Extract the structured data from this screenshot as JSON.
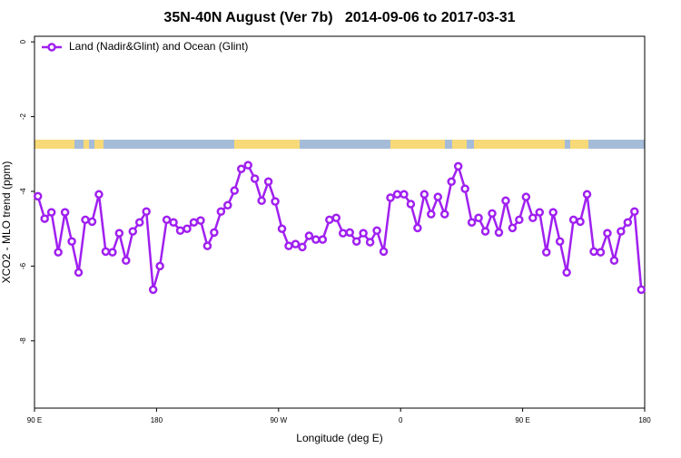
{
  "chart_data": {
    "type": "line",
    "title": "35N-40N August (Ver 7b)   2014-09-06 to 2017-03-31",
    "x_label": "Longitude (deg E)",
    "y_label": "XCO2 - MLO trend (ppm)",
    "xlim": [
      90,
      540
    ],
    "ylim": [
      -9.8,
      0.15
    ],
    "xticks": [
      {
        "value": 90,
        "label": "90 E"
      },
      {
        "value": 180,
        "label": "180"
      },
      {
        "value": 270,
        "label": "90 W"
      },
      {
        "value": 360,
        "label": "0"
      },
      {
        "value": 450,
        "label": "90 E"
      },
      {
        "value": 540,
        "label": "180"
      }
    ],
    "yticks": [
      0,
      -2,
      -4,
      -6,
      -8
    ],
    "legend_position": "top-left",
    "x": [
      92.5,
      97.5,
      102.5,
      107.5,
      112.5,
      117.5,
      122.5,
      127.5,
      132.5,
      137.5,
      142.5,
      147.5,
      152.5,
      157.5,
      162.5,
      167.5,
      172.5,
      177.5,
      182.5,
      187.5,
      192.5,
      197.5,
      202.5,
      207.5,
      212.5,
      217.5,
      222.5,
      227.5,
      232.5,
      237.5,
      242.5,
      247.5,
      252.5,
      257.5,
      262.5,
      267.5,
      272.5,
      277.5,
      282.5,
      287.5,
      292.5,
      297.5,
      302.5,
      307.5,
      312.5,
      317.5,
      322.5,
      327.5,
      332.5,
      337.5,
      342.5,
      347.5,
      352.5,
      357.5,
      362.5,
      367.5,
      372.5,
      377.5,
      382.5,
      387.5,
      392.5,
      397.5,
      402.5,
      407.5,
      412.5,
      417.5,
      422.5,
      427.5,
      432.5,
      437.5,
      442.5,
      447.5,
      452.5,
      457.5,
      462.5,
      467.5,
      472.5,
      477.5,
      482.5,
      487.5,
      492.5,
      497.5,
      502.5,
      507.5,
      512.5,
      517.5,
      522.5,
      527.5,
      532.5,
      537.5
    ],
    "series": [
      {
        "name": "Land (Nadir&Glint) and Ocean (Glint)",
        "color": "#a020f0",
        "values": [
          -4.13,
          -4.73,
          -4.56,
          -5.63,
          -4.56,
          -5.34,
          -6.17,
          -4.76,
          -4.81,
          -4.08,
          -5.61,
          -5.63,
          -5.12,
          -5.85,
          -5.07,
          -4.83,
          -4.54,
          -6.63,
          -6.0,
          -4.76,
          -4.83,
          -5.05,
          -5.0,
          -4.83,
          -4.78,
          -5.46,
          -5.1,
          -4.54,
          -4.37,
          -3.98,
          -3.4,
          -3.3,
          -3.66,
          -4.25,
          -3.74,
          -4.27,
          -5.0,
          -5.46,
          -5.41,
          -5.49,
          -5.19,
          -5.29,
          -5.29,
          -4.76,
          -4.71,
          -5.12,
          -5.1,
          -5.34,
          -5.12,
          -5.36,
          -5.05,
          -5.61,
          -4.17,
          -4.08,
          -4.08,
          -4.34,
          -4.98,
          -4.08,
          -4.61,
          -4.15,
          -4.61,
          -3.74,
          -3.33,
          -3.93,
          -4.83,
          -4.71,
          -5.07,
          -4.59,
          -5.1,
          -4.25,
          -4.98,
          -4.76,
          -4.15,
          -4.71,
          -4.56,
          -5.63,
          -4.56,
          -5.34,
          -6.17,
          -4.76,
          -4.81,
          -4.08,
          -5.61,
          -5.63,
          -5.12,
          -5.85,
          -5.07,
          -4.83,
          -4.54,
          -6.63
        ]
      }
    ]
  }
}
